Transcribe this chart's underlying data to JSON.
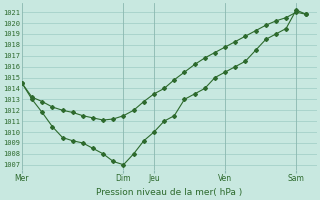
{
  "xlabel": "Pression niveau de la mer( hPa )",
  "background_color": "#c8e8e0",
  "plot_bg_color": "#c8e8e0",
  "grid_color": "#aad4cc",
  "line_color": "#2d6a2d",
  "marker_color": "#2d6a2d",
  "ylim": [
    1006.5,
    1021.8
  ],
  "yticks": [
    1007,
    1008,
    1009,
    1010,
    1011,
    1012,
    1013,
    1014,
    1015,
    1016,
    1017,
    1018,
    1019,
    1020,
    1021
  ],
  "day_labels": [
    "Mer",
    "Dim",
    "Jeu",
    "Ven",
    "Sam"
  ],
  "day_positions": [
    0,
    10,
    13,
    20,
    27
  ],
  "xlim_max": 29,
  "series1_x": [
    0,
    1,
    2,
    3,
    4,
    5,
    6,
    7,
    8,
    9,
    10,
    11,
    12,
    13,
    14,
    15,
    16,
    17,
    18,
    19,
    20,
    21,
    22,
    23,
    24,
    25,
    26,
    27,
    28
  ],
  "series1_y": [
    1014.5,
    1013.2,
    1012.8,
    1012.3,
    1012.0,
    1011.8,
    1011.5,
    1011.3,
    1011.1,
    1011.2,
    1011.5,
    1012.0,
    1012.8,
    1013.5,
    1014.0,
    1014.8,
    1015.5,
    1016.2,
    1016.8,
    1017.3,
    1017.8,
    1018.3,
    1018.8,
    1019.3,
    1019.8,
    1020.2,
    1020.5,
    1021.0,
    1020.8
  ],
  "series2_x": [
    0,
    1,
    2,
    3,
    4,
    5,
    6,
    7,
    8,
    9,
    10,
    11,
    12,
    13,
    14,
    15,
    16,
    17,
    18,
    19,
    20,
    21,
    22,
    23,
    24,
    25,
    26,
    27,
    28
  ],
  "series2_y": [
    1014.5,
    1013.0,
    1011.8,
    1010.5,
    1009.5,
    1009.2,
    1009.0,
    1008.5,
    1008.0,
    1007.3,
    1007.0,
    1008.0,
    1009.2,
    1010.0,
    1011.0,
    1011.5,
    1013.0,
    1013.5,
    1014.0,
    1015.0,
    1015.5,
    1016.0,
    1016.5,
    1017.5,
    1018.5,
    1019.0,
    1019.5,
    1021.2,
    1020.8
  ]
}
